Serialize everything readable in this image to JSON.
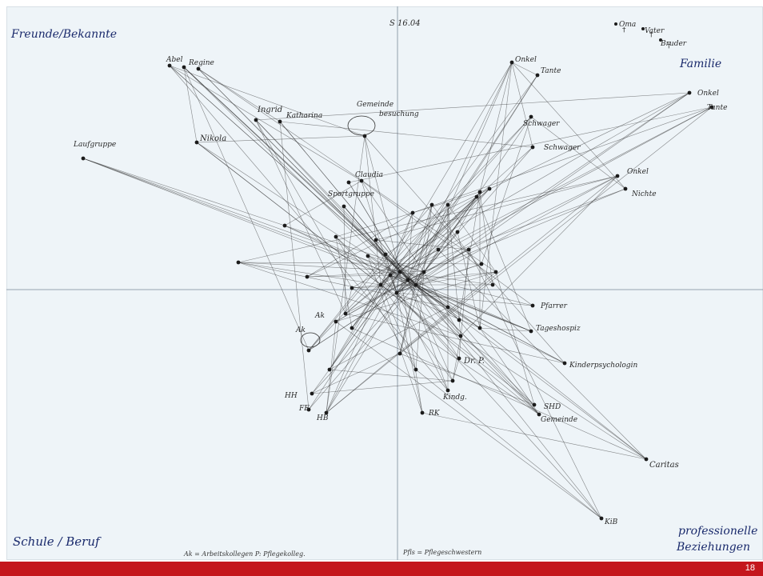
{
  "quadrants": {
    "top_left": "Freunde/Bekannte",
    "top_right": "Familie",
    "bottom_left": "Schule / Beruf",
    "bottom_right_line1": "professionelle",
    "bottom_right_line2": "Beziehungen"
  },
  "top_center_label": "S 16.04",
  "legend": {
    "left": "Ak = Arbeitskollegen   P: Pflegekolleg.",
    "right": "Pfls = Pflegeschwestern"
  },
  "labels": {
    "oma": "Oma",
    "vater": "Vater",
    "bruder": "Bruder",
    "onkel_tante_top": "Onkel",
    "tante_top": "Tante",
    "schwager": "Schwager",
    "schwager2": "Schwager",
    "onkel_right": "Onkel",
    "tante_right": "Tante",
    "onkel_mid": "Onkel",
    "nichte": "Nichte",
    "abel": "Abel",
    "regine": "Regine",
    "ingrid": "Ingrid",
    "katharina": "Katharina",
    "gemeinde_top": "Gemeinde",
    "gemeinde_top2": "besuchung",
    "laufgruppe": "Laufgruppe",
    "nikola": "Nikola",
    "claudia": "Claudia",
    "sportgruppe": "Sportgruppe",
    "pfarrer": "Pfarrer",
    "tageshospiz": "Tageshospiz",
    "kinderpsychologin": "Kinderpsychologin",
    "drp": "Dr. P.",
    "ak1": "Ak",
    "ak2": "Ak",
    "hh": "HH",
    "fe": "FE",
    "hb": "HB",
    "rk": "RK",
    "shd": "SHD",
    "gemeinde_bottom": "Gemeinde",
    "caritas": "Caritas",
    "kib": "KiB",
    "kindergarten": "Kindg."
  },
  "page_number": "18",
  "colors": {
    "accent": "#c4161c",
    "quadrant_text": "#1a2a6c",
    "line": "#2b2b2b"
  }
}
